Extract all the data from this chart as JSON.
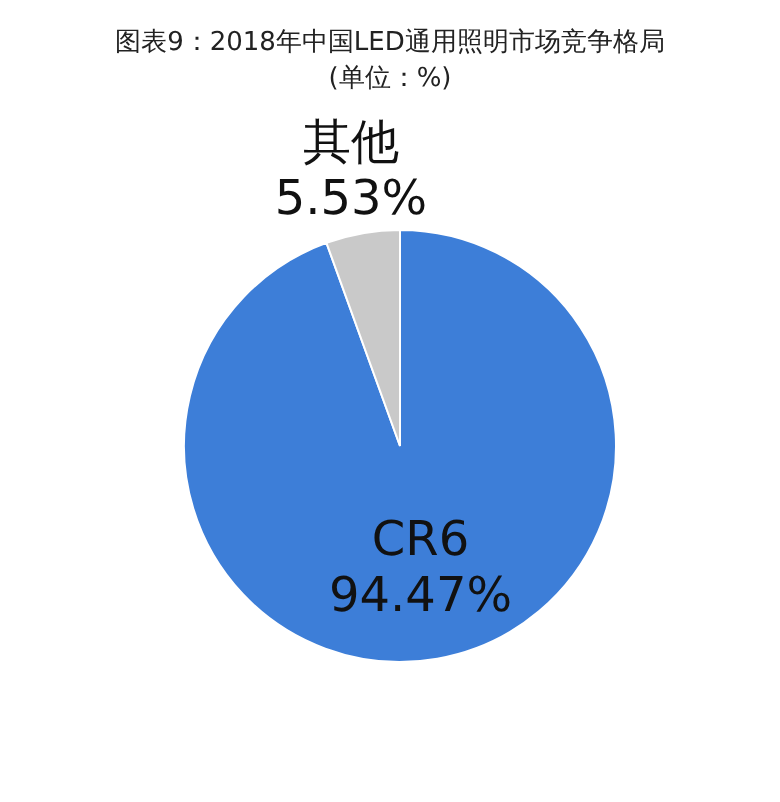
{
  "chart_data": {
    "type": "pie",
    "title": "图表9：2018年中国LED通用照明市场竞争格局",
    "subtitle": "(单位：%)",
    "categories": [
      "CR6",
      "其他"
    ],
    "values": [
      94.47,
      5.53
    ],
    "colors": [
      "#3d7ed8",
      "#c9c9c9"
    ],
    "value_labels": [
      "94.47%",
      "5.53%"
    ],
    "legend": false
  }
}
